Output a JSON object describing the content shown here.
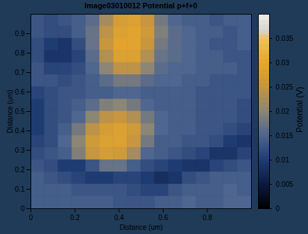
{
  "chart_data": {
    "type": "heatmap",
    "title": "Image03010012 Potential p+f+0",
    "x_label": "Distance (um)",
    "y_label": "Distance (um)",
    "xlim": [
      0,
      1
    ],
    "ylim": [
      0,
      1
    ],
    "xticks": [
      0,
      0.2,
      0.4,
      0.6,
      0.8
    ],
    "yticks": [
      0,
      0.1,
      0.2,
      0.3,
      0.4,
      0.5,
      0.6,
      0.7,
      0.8,
      0.9
    ],
    "cells": [
      [
        0.013,
        0.012,
        0.013,
        0.014,
        0.016,
        0.022,
        0.027,
        0.028,
        0.025,
        0.018,
        0.015,
        0.014,
        0.014,
        0.013,
        0.014,
        0.014
      ],
      [
        0.013,
        0.012,
        0.012,
        0.014,
        0.017,
        0.024,
        0.028,
        0.029,
        0.026,
        0.019,
        0.016,
        0.015,
        0.014,
        0.014,
        0.013,
        0.014
      ],
      [
        0.012,
        0.01,
        0.009,
        0.012,
        0.017,
        0.025,
        0.029,
        0.029,
        0.025,
        0.018,
        0.016,
        0.015,
        0.014,
        0.013,
        0.013,
        0.014
      ],
      [
        0.012,
        0.009,
        0.009,
        0.011,
        0.016,
        0.023,
        0.028,
        0.028,
        0.023,
        0.017,
        0.016,
        0.015,
        0.014,
        0.014,
        0.013,
        0.013
      ],
      [
        0.013,
        0.011,
        0.011,
        0.012,
        0.015,
        0.02,
        0.024,
        0.024,
        0.02,
        0.016,
        0.015,
        0.015,
        0.014,
        0.014,
        0.014,
        0.013
      ],
      [
        0.013,
        0.013,
        0.012,
        0.013,
        0.014,
        0.016,
        0.018,
        0.018,
        0.016,
        0.015,
        0.015,
        0.014,
        0.014,
        0.013,
        0.013,
        0.013
      ],
      [
        0.011,
        0.012,
        0.013,
        0.013,
        0.014,
        0.014,
        0.015,
        0.015,
        0.014,
        0.014,
        0.014,
        0.014,
        0.013,
        0.013,
        0.013,
        0.013
      ],
      [
        0.01,
        0.012,
        0.013,
        0.014,
        0.016,
        0.019,
        0.02,
        0.018,
        0.015,
        0.014,
        0.014,
        0.014,
        0.013,
        0.013,
        0.013,
        0.012
      ],
      [
        0.01,
        0.012,
        0.013,
        0.015,
        0.02,
        0.024,
        0.025,
        0.023,
        0.018,
        0.015,
        0.014,
        0.014,
        0.013,
        0.013,
        0.013,
        0.012
      ],
      [
        0.01,
        0.012,
        0.014,
        0.018,
        0.024,
        0.027,
        0.028,
        0.026,
        0.02,
        0.015,
        0.014,
        0.014,
        0.013,
        0.013,
        0.012,
        0.011
      ],
      [
        0.011,
        0.012,
        0.015,
        0.02,
        0.026,
        0.028,
        0.028,
        0.025,
        0.018,
        0.014,
        0.014,
        0.013,
        0.013,
        0.012,
        0.01,
        0.009
      ],
      [
        0.012,
        0.013,
        0.014,
        0.019,
        0.025,
        0.027,
        0.026,
        0.022,
        0.015,
        0.014,
        0.013,
        0.012,
        0.011,
        0.009,
        0.009,
        0.011
      ],
      [
        0.013,
        0.012,
        0.01,
        0.01,
        0.013,
        0.017,
        0.017,
        0.014,
        0.012,
        0.011,
        0.01,
        0.009,
        0.009,
        0.011,
        0.012,
        0.013
      ],
      [
        0.014,
        0.013,
        0.012,
        0.011,
        0.01,
        0.01,
        0.011,
        0.011,
        0.01,
        0.008,
        0.009,
        0.012,
        0.013,
        0.014,
        0.014,
        0.014
      ],
      [
        0.014,
        0.014,
        0.014,
        0.013,
        0.013,
        0.013,
        0.013,
        0.012,
        0.011,
        0.011,
        0.013,
        0.014,
        0.014,
        0.014,
        0.015,
        0.014
      ],
      [
        0.014,
        0.014,
        0.014,
        0.014,
        0.014,
        0.014,
        0.013,
        0.013,
        0.013,
        0.014,
        0.014,
        0.015,
        0.014,
        0.014,
        0.015,
        0.015
      ]
    ],
    "colorbar": {
      "range": [
        0,
        0.04
      ],
      "ticks": [
        0,
        0.005,
        0.01,
        0.015,
        0.02,
        0.025,
        0.03,
        0.035
      ],
      "label": "Potential (V)"
    }
  }
}
